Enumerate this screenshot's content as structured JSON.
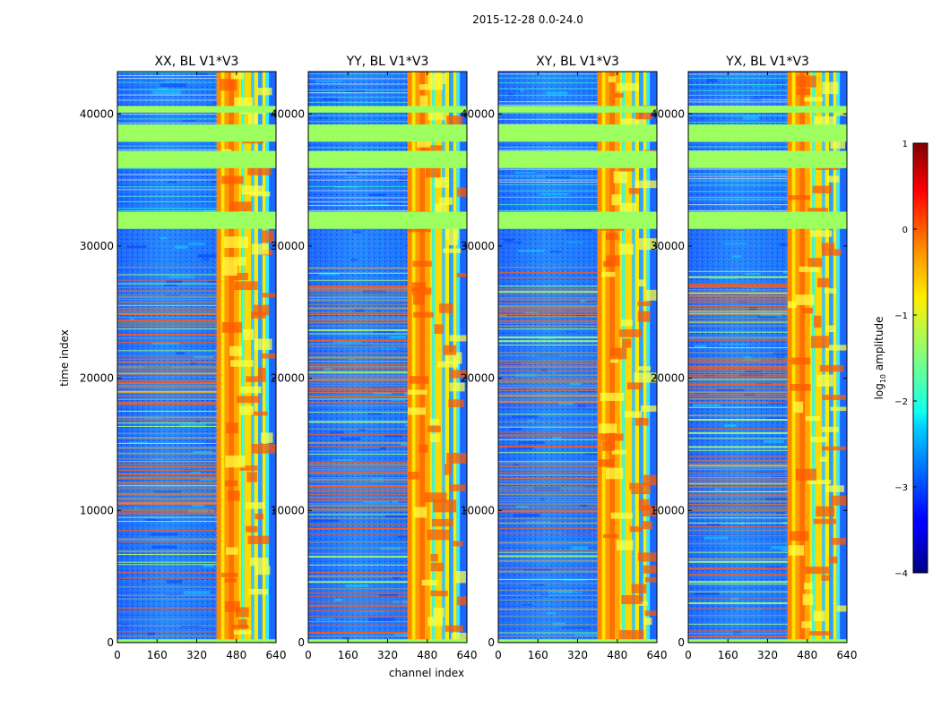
{
  "figure": {
    "title": "2015-12-28 0.0-24.0"
  },
  "chart_data": [
    {
      "type": "heatmap",
      "title": "XX, BL V1*V3",
      "xlabel": "channel index",
      "ylabel": "time index",
      "xlim": [
        0,
        640
      ],
      "ylim": [
        0,
        43200
      ],
      "xticks": [
        "0",
        "160",
        "320",
        "480",
        "640"
      ],
      "yticks": [
        "0",
        "10000",
        "20000",
        "30000",
        "40000"
      ]
    },
    {
      "type": "heatmap",
      "title": "YY, BL V1*V3",
      "xlabel": "channel index",
      "ylabel": "",
      "xlim": [
        0,
        640
      ],
      "ylim": [
        0,
        43200
      ],
      "xticks": [
        "0",
        "160",
        "320",
        "480",
        "640"
      ],
      "yticks": [
        "0",
        "10000",
        "20000",
        "30000",
        "40000"
      ]
    },
    {
      "type": "heatmap",
      "title": "XY, BL V1*V3",
      "xlabel": "channel index",
      "ylabel": "",
      "xlim": [
        0,
        640
      ],
      "ylim": [
        0,
        43200
      ],
      "xticks": [
        "0",
        "160",
        "320",
        "480",
        "640"
      ],
      "yticks": [
        "0",
        "10000",
        "20000",
        "30000",
        "40000"
      ]
    },
    {
      "type": "heatmap",
      "title": "YX, BL V1*V3",
      "xlabel": "channel index",
      "ylabel": "",
      "xlim": [
        0,
        640
      ],
      "ylim": [
        0,
        43200
      ],
      "xticks": [
        "0",
        "160",
        "320",
        "480",
        "640"
      ],
      "yticks": [
        "0",
        "10000",
        "20000",
        "30000",
        "40000"
      ]
    }
  ],
  "shared": {
    "xlabel": "channel index",
    "ylabel": "time index",
    "flagged_time_bands": [
      [
        31300,
        32600
      ],
      [
        35900,
        37200
      ],
      [
        37900,
        39200
      ],
      [
        40100,
        40600
      ]
    ],
    "flagged_channel_band": [
      400,
      640
    ]
  },
  "colorbar": {
    "label": "log",
    "label_sub": "10",
    "label_rest": " amplitude",
    "range": [
      -4,
      1
    ],
    "ticks": [
      "1",
      "0",
      "−1",
      "−2",
      "−3",
      "−4"
    ],
    "colormap": "jet"
  },
  "colors": {
    "flag_green": "#9cff5f",
    "background_blue": "#2a7bff"
  }
}
